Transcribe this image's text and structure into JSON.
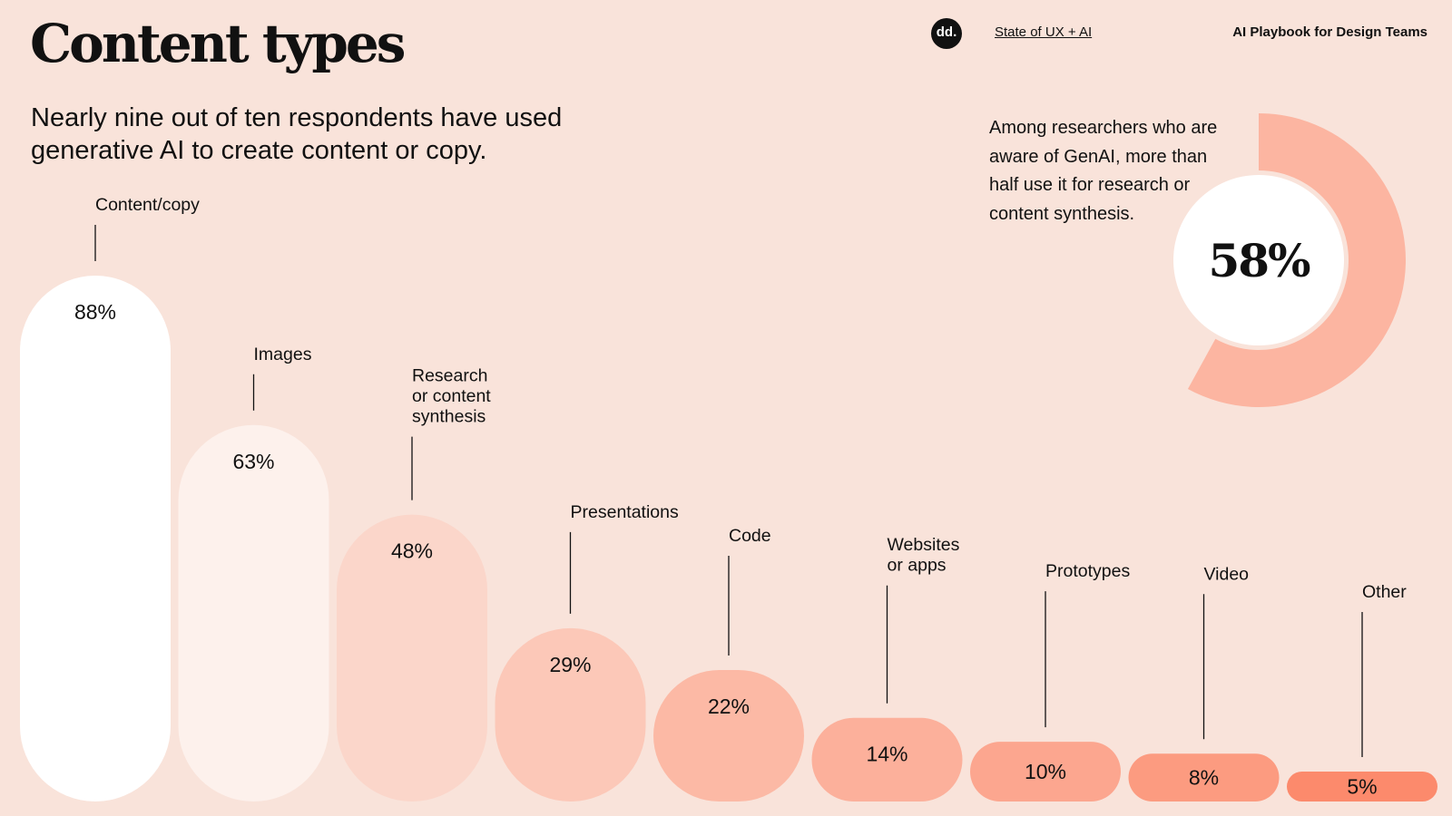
{
  "header": {
    "title": "Content types",
    "logo_text": "dd.",
    "link_label": "State of UX + AI",
    "playbook_label": "AI Playbook for Design Teams"
  },
  "subtitle": "Nearly nine out of ten respondents have used generative AI to create content or copy.",
  "donut_note": "Among researchers who are aware of GenAI, more than half use it for research or content synthesis.",
  "colors": {
    "background": "#f9e3da",
    "text": "#111111",
    "donut_ring": "#fcb5a1",
    "donut_center": "#ffffff",
    "bar_scale": [
      "#ffffff",
      "#fdf1ec",
      "#fbd6ca",
      "#fcc8b8",
      "#fcb9a5",
      "#fcb09b",
      "#fca68f",
      "#fc9b80",
      "#fc8a6c"
    ]
  },
  "chart_data": [
    {
      "type": "bar",
      "categories": [
        "Content/copy",
        "Images",
        "Research or content synthesis",
        "Presentations",
        "Code",
        "Websites or apps",
        "Prototypes",
        "Video",
        "Other"
      ],
      "category_label_lines": [
        [
          "Content/copy"
        ],
        [
          "Images"
        ],
        [
          "Research",
          "or content",
          "synthesis"
        ],
        [
          "Presentations"
        ],
        [
          "Code"
        ],
        [
          "Websites",
          "or apps"
        ],
        [
          "Prototypes"
        ],
        [
          "Video"
        ],
        [
          "Other"
        ]
      ],
      "values": [
        88,
        63,
        48,
        29,
        22,
        14,
        10,
        8,
        5
      ],
      "value_labels": [
        "88%",
        "63%",
        "48%",
        "29%",
        "22%",
        "14%",
        "10%",
        "8%",
        "5%"
      ],
      "ylim": [
        0,
        100
      ]
    },
    {
      "type": "pie",
      "values": [
        58
      ],
      "value_label": "58%",
      "range": [
        0,
        100
      ]
    }
  ]
}
